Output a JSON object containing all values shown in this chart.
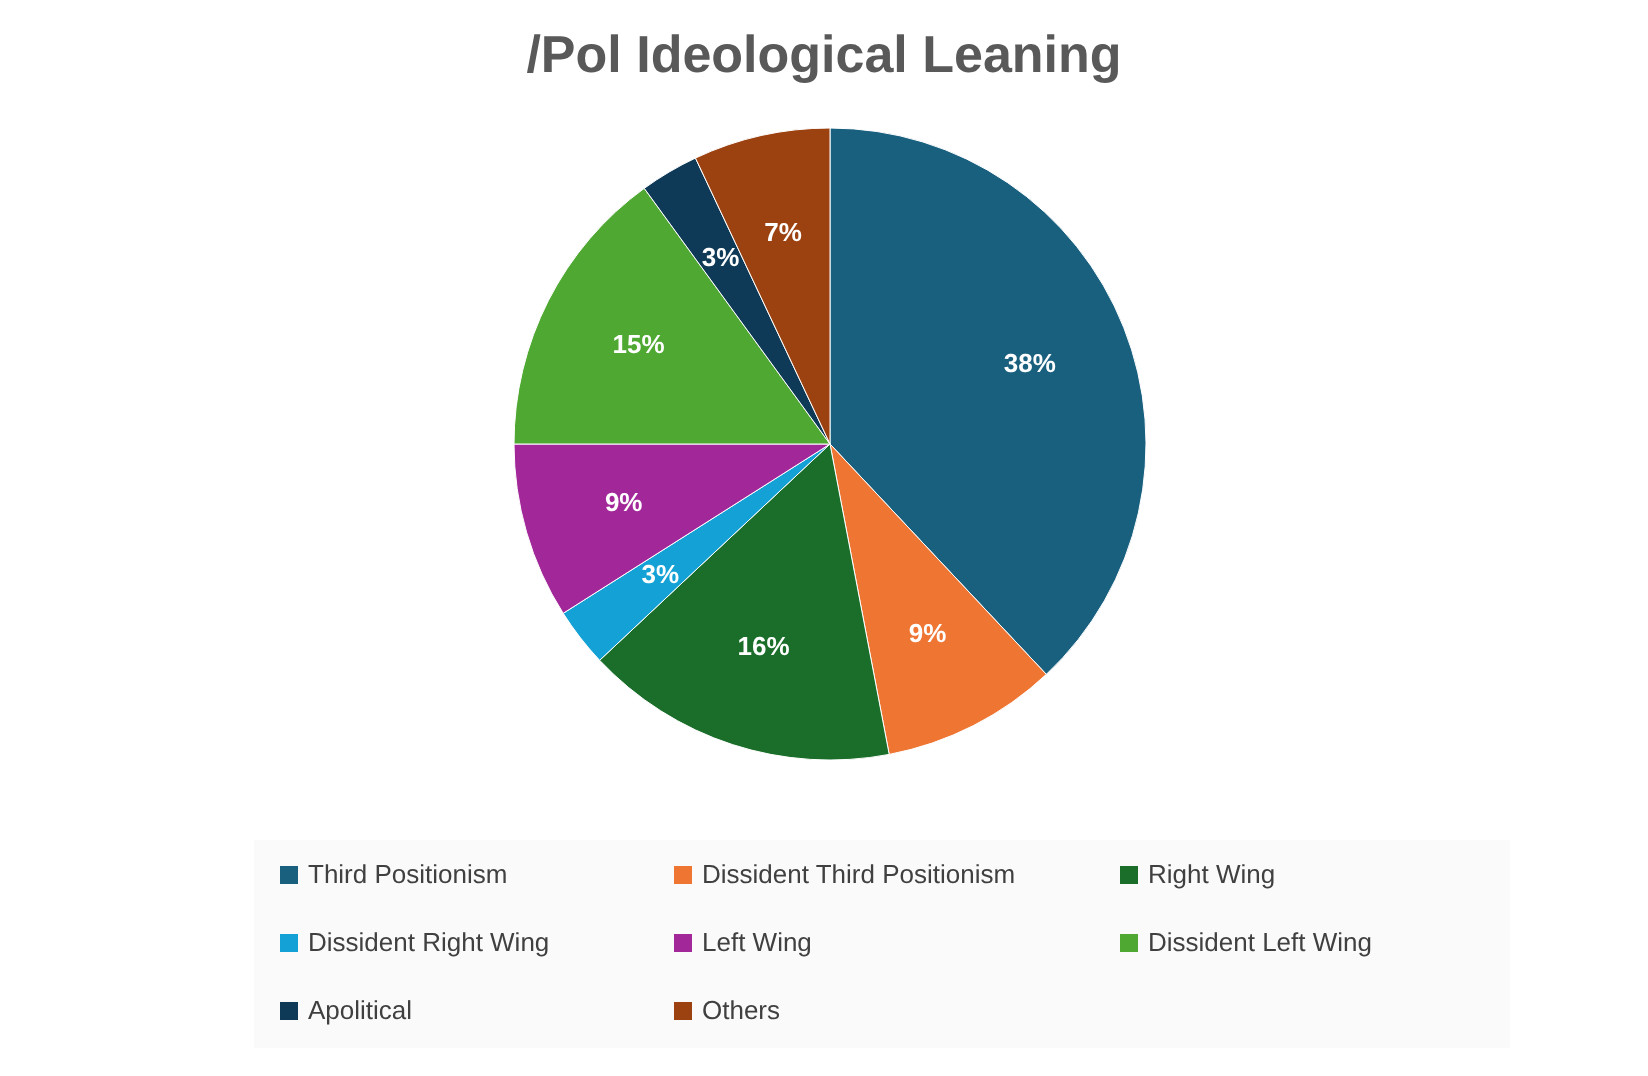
{
  "chart_data": {
    "type": "pie",
    "title": "/Pol Ideological Leaning",
    "categories": [
      "Third Positionism",
      "Dissident Third Positionism",
      "Right Wing",
      "Dissident Right Wing",
      "Left Wing",
      "Dissident Left Wing",
      "Apolitical",
      "Others"
    ],
    "values": [
      38,
      9,
      16,
      3,
      9,
      15,
      3,
      7
    ],
    "colors": [
      "#19607f",
      "#ef7533",
      "#1a6e29",
      "#14a2d6",
      "#a2289a",
      "#4ea831",
      "#0e3a57",
      "#9c4211"
    ],
    "value_labels": [
      "38%",
      "9%",
      "16%",
      "3%",
      "9%",
      "15%",
      "3%",
      "7%"
    ],
    "legend": "bottom"
  }
}
